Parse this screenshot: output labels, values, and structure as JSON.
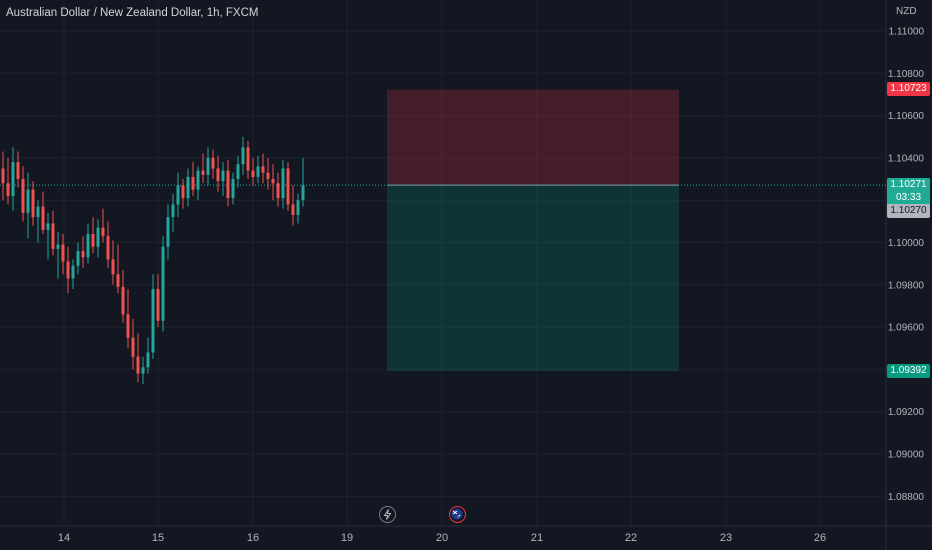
{
  "title": "Australian Dollar / New Zealand Dollar, 1h, FXCM",
  "currency": "NZD",
  "price_axis_labels": [
    "1.11000",
    "1.10800",
    "1.10600",
    "1.10400",
    "1.10200",
    "1.10000",
    "1.09800",
    "1.09600",
    "1.09400",
    "1.09200",
    "1.09000",
    "1.08800"
  ],
  "date_axis_labels": [
    "14",
    "15",
    "16",
    "19",
    "20",
    "21",
    "22",
    "23",
    "26"
  ],
  "tags": {
    "stop_loss": "1.10723",
    "take_profit": "1.09392",
    "current_price": "1.10271",
    "countdown": "03:33",
    "bid_price": "1.10270"
  },
  "position_tool": {
    "entry": 1.10271,
    "stop": 1.10723,
    "target": 1.09392,
    "stop_color": "#f23645",
    "target_color": "#089981"
  },
  "colors": {
    "background": "#131722",
    "up": "#26a69a",
    "down": "#ef5350",
    "grid": "#1e222d"
  },
  "chart_data": {
    "type": "candlestick",
    "title": "Australian Dollar / New Zealand Dollar, 1h, FXCM",
    "ylim": [
      1.087,
      1.112
    ],
    "y_unit": "NZD",
    "x_ticks": [
      "14",
      "15",
      "16",
      "19",
      "20",
      "21",
      "22",
      "23",
      "26"
    ],
    "ohlc": [
      [
        1.1035,
        1.1043,
        1.102,
        1.1028
      ],
      [
        1.1028,
        1.104,
        1.1018,
        1.1022
      ],
      [
        1.1022,
        1.1045,
        1.1015,
        1.1038
      ],
      [
        1.1038,
        1.1043,
        1.1026,
        1.103
      ],
      [
        1.103,
        1.1036,
        1.101,
        1.1014
      ],
      [
        1.1014,
        1.1033,
        1.1002,
        1.1025
      ],
      [
        1.1025,
        1.1029,
        1.1008,
        1.1012
      ],
      [
        1.1012,
        1.102,
        1.1,
        1.1017
      ],
      [
        1.1017,
        1.1024,
        1.1004,
        1.1006
      ],
      [
        1.1006,
        1.1014,
        1.0992,
        1.1009
      ],
      [
        1.1009,
        1.1015,
        1.0994,
        1.0997
      ],
      [
        1.0997,
        1.1005,
        1.0983,
        1.0999
      ],
      [
        1.0999,
        1.1004,
        1.0985,
        1.0991
      ],
      [
        1.0991,
        1.0998,
        1.0976,
        1.0983
      ],
      [
        1.0983,
        1.0992,
        1.0978,
        1.0989
      ],
      [
        1.0989,
        1.1,
        1.0985,
        1.0996
      ],
      [
        1.0996,
        1.1003,
        1.0988,
        1.0993
      ],
      [
        1.0993,
        1.1009,
        1.099,
        1.1004
      ],
      [
        1.1004,
        1.1012,
        1.0995,
        1.0998
      ],
      [
        1.0998,
        1.1011,
        1.0993,
        1.1007
      ],
      [
        1.1007,
        1.1016,
        1.1,
        1.1003
      ],
      [
        1.1003,
        1.101,
        1.0988,
        1.0992
      ],
      [
        1.0992,
        1.1001,
        1.098,
        1.0985
      ],
      [
        1.0985,
        1.0999,
        1.0976,
        1.0979
      ],
      [
        1.0979,
        1.0987,
        1.0962,
        1.0966
      ],
      [
        1.0966,
        1.0978,
        1.095,
        1.0955
      ],
      [
        1.0955,
        1.0964,
        1.094,
        1.0946
      ],
      [
        1.0946,
        1.0957,
        1.0934,
        1.0938
      ],
      [
        1.0938,
        1.0946,
        1.0933,
        1.0941
      ],
      [
        1.0941,
        1.0955,
        1.0938,
        1.0948
      ],
      [
        1.0948,
        1.0985,
        1.0945,
        1.0978
      ],
      [
        1.0978,
        1.0985,
        1.096,
        1.0963
      ],
      [
        1.0963,
        1.1003,
        1.0958,
        1.0998
      ],
      [
        1.0998,
        1.1018,
        1.0992,
        1.1012
      ],
      [
        1.1012,
        1.1023,
        1.1005,
        1.1018
      ],
      [
        1.1018,
        1.1033,
        1.1012,
        1.1027
      ],
      [
        1.1027,
        1.103,
        1.1016,
        1.1021
      ],
      [
        1.1021,
        1.1035,
        1.1017,
        1.1031
      ],
      [
        1.1031,
        1.1038,
        1.1022,
        1.1025
      ],
      [
        1.1025,
        1.1036,
        1.102,
        1.1034
      ],
      [
        1.1034,
        1.1042,
        1.1028,
        1.1032
      ],
      [
        1.1032,
        1.1045,
        1.1027,
        1.104
      ],
      [
        1.104,
        1.1044,
        1.103,
        1.1035
      ],
      [
        1.1035,
        1.1041,
        1.1024,
        1.1029
      ],
      [
        1.1029,
        1.1038,
        1.1022,
        1.1034
      ],
      [
        1.1034,
        1.1039,
        1.1017,
        1.1021
      ],
      [
        1.1021,
        1.1033,
        1.1018,
        1.103
      ],
      [
        1.103,
        1.1041,
        1.1026,
        1.1037
      ],
      [
        1.1037,
        1.105,
        1.1032,
        1.1045
      ],
      [
        1.1045,
        1.1048,
        1.103,
        1.1034
      ],
      [
        1.1034,
        1.104,
        1.1027,
        1.1031
      ],
      [
        1.1031,
        1.1041,
        1.1028,
        1.1036
      ],
      [
        1.1036,
        1.1042,
        1.1028,
        1.1033
      ],
      [
        1.1033,
        1.104,
        1.1025,
        1.103
      ],
      [
        1.103,
        1.1037,
        1.102,
        1.1028
      ],
      [
        1.1028,
        1.1033,
        1.1017,
        1.1021
      ],
      [
        1.1021,
        1.1039,
        1.1016,
        1.1035
      ],
      [
        1.1035,
        1.1038,
        1.1015,
        1.1018
      ],
      [
        1.1018,
        1.1027,
        1.1008,
        1.1013
      ],
      [
        1.1013,
        1.1023,
        1.1009,
        1.102
      ],
      [
        1.102,
        1.104,
        1.1017,
        1.1027
      ]
    ],
    "x_positions": [
      3,
      8,
      13,
      18,
      23,
      28,
      33,
      38,
      43,
      48,
      53,
      58,
      63,
      68,
      73,
      78,
      83,
      88,
      93,
      98,
      103,
      108,
      113,
      118,
      123,
      128,
      133,
      138,
      143,
      148,
      153,
      158,
      163,
      168,
      173,
      178,
      183,
      188,
      193,
      198,
      203,
      208,
      213,
      218,
      223,
      228,
      233,
      238,
      243,
      248,
      253,
      258,
      263,
      268,
      273,
      278,
      283,
      288,
      293,
      298,
      303
    ]
  }
}
